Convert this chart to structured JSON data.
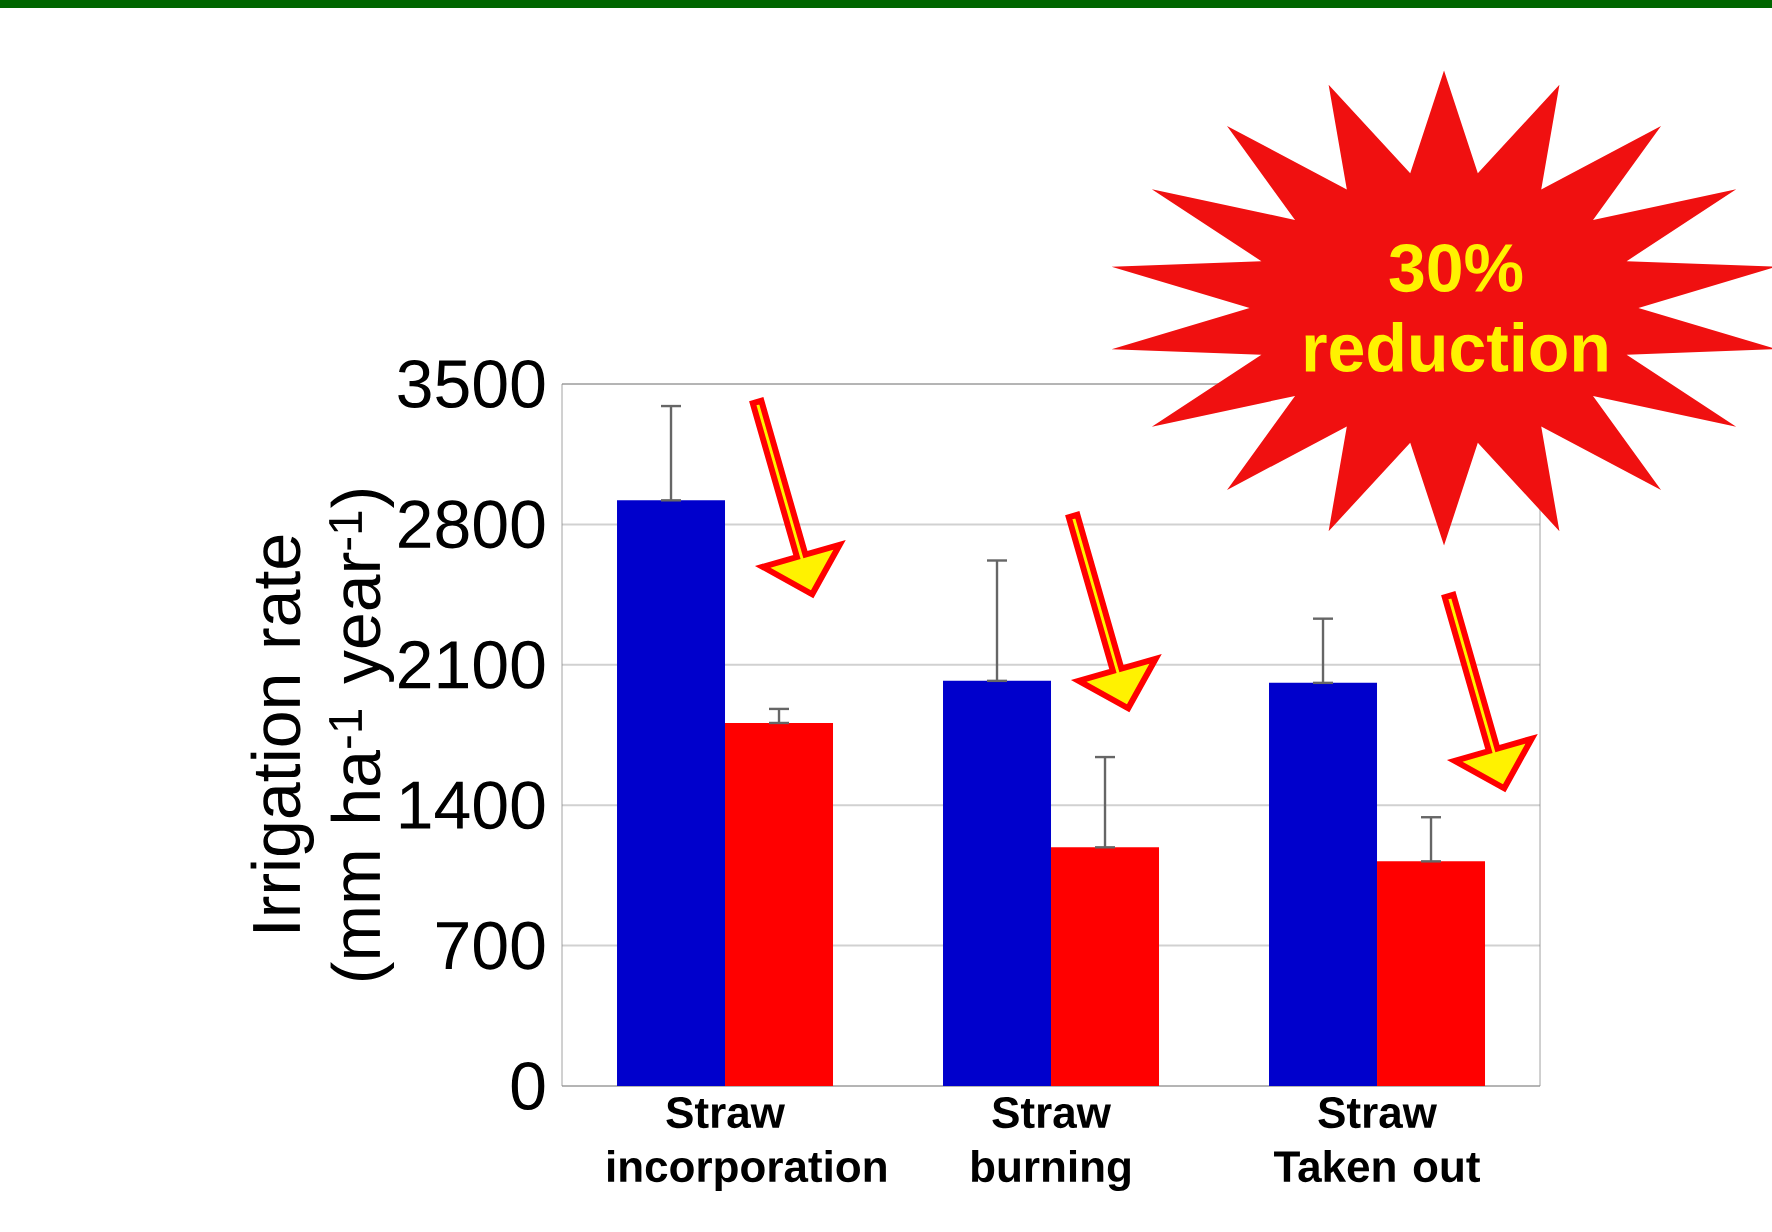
{
  "chart_data": {
    "type": "bar",
    "ylabel": "Irrigation rate (mm ha$^{-1}$ year$^{-1}$)",
    "categories": [
      "Straw incorporation",
      "Straw burning",
      "Straw Taken out"
    ],
    "series": [
      {
        "color": "#0000cc",
        "values": [
          2920,
          2020,
          2010
        ],
        "errors": [
          [
            2920,
            3390
          ],
          [
            2020,
            2620
          ],
          [
            2010,
            2330
          ]
        ]
      },
      {
        "color": "#ff0000",
        "values": [
          1810,
          1190,
          1120
        ],
        "errors": [
          [
            1810,
            1880
          ],
          [
            1190,
            1640
          ],
          [
            1120,
            1340
          ]
        ]
      }
    ],
    "ylim": [
      0,
      3500
    ],
    "yticks": [
      0,
      700,
      1400,
      2100,
      2800,
      3500
    ],
    "grid": "y",
    "annotations": [
      "30% reduction"
    ]
  }
}
